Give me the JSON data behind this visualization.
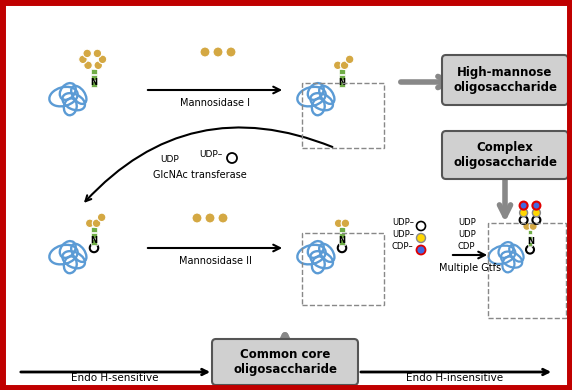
{
  "bg_color": "#ffffff",
  "border_color": "#c00000",
  "border_lw": 5,
  "figsize": [
    5.72,
    3.9
  ],
  "dpi": 100,
  "blue": "#5b9bd5",
  "green": "#70ad47",
  "tan": "#d4a843",
  "yellow": "#ffd700",
  "blue2": "#4169e1",
  "red": "#e00000",
  "box_fill": "#d0d0d0",
  "box_edge": "#555555",
  "arrow_gray": "#606060",
  "labels": {
    "mannosidase1": "Mannosidase I",
    "mannosidase2": "Mannosidase II",
    "glcnac": "GlcNAc transferase",
    "multiple_gtfs": "Multiple Gtfs",
    "udp_dash": "UDP–",
    "cdp_dash": "CDP–",
    "udp": "UDP",
    "cdp": "CDP",
    "high_mannose": "High-mannose\noligosaccharide",
    "complex": "Complex\noligosaccharide",
    "common_core": "Common core\noligosaccharide",
    "endo_sensitive": "Endo H-sensitive",
    "endo_insensitive": "Endo H-insensitive"
  }
}
